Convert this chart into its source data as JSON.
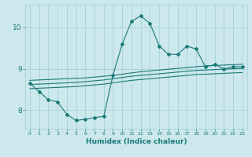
{
  "xlabel": "Humidex (Indice chaleur)",
  "ylabel": "",
  "bg_color": "#cce8ec",
  "grid_color": "#9ecdd4",
  "line_color": "#1a7a78",
  "xlim": [
    -0.5,
    23.5
  ],
  "ylim": [
    7.55,
    10.55
  ],
  "yticks": [
    8,
    9,
    10
  ],
  "xticks": [
    0,
    1,
    2,
    3,
    4,
    5,
    6,
    7,
    8,
    9,
    10,
    11,
    12,
    13,
    14,
    15,
    16,
    17,
    18,
    19,
    20,
    21,
    22,
    23
  ],
  "line1_x": [
    0,
    1,
    2,
    3,
    4,
    5,
    6,
    7,
    8,
    9,
    10,
    11,
    12,
    13,
    14,
    15,
    16,
    17,
    18,
    19,
    20,
    21,
    22,
    23
  ],
  "line1_y": [
    8.65,
    8.45,
    8.25,
    8.2,
    7.9,
    7.75,
    7.78,
    7.82,
    7.85,
    8.85,
    9.6,
    10.15,
    10.28,
    10.1,
    9.55,
    9.35,
    9.35,
    9.55,
    9.48,
    9.05,
    9.1,
    9.0,
    9.05,
    9.05
  ],
  "line2_x": [
    0,
    1,
    2,
    3,
    4,
    5,
    6,
    7,
    8,
    9,
    10,
    11,
    12,
    13,
    14,
    15,
    16,
    17,
    18,
    19,
    20,
    21,
    22,
    23
  ],
  "line2_y": [
    8.72,
    8.73,
    8.74,
    8.75,
    8.76,
    8.77,
    8.78,
    8.8,
    8.82,
    8.84,
    8.87,
    8.9,
    8.93,
    8.95,
    8.97,
    8.99,
    9.01,
    9.03,
    9.05,
    9.07,
    9.08,
    9.09,
    9.1,
    9.11
  ],
  "line3_x": [
    0,
    1,
    2,
    3,
    4,
    5,
    6,
    7,
    8,
    9,
    10,
    11,
    12,
    13,
    14,
    15,
    16,
    17,
    18,
    19,
    20,
    21,
    22,
    23
  ],
  "line3_y": [
    8.62,
    8.63,
    8.64,
    8.65,
    8.66,
    8.67,
    8.69,
    8.71,
    8.73,
    8.76,
    8.79,
    8.82,
    8.84,
    8.86,
    8.88,
    8.9,
    8.92,
    8.94,
    8.96,
    8.97,
    8.98,
    8.99,
    9.0,
    9.01
  ],
  "line4_x": [
    0,
    1,
    2,
    3,
    4,
    5,
    6,
    7,
    8,
    9,
    10,
    11,
    12,
    13,
    14,
    15,
    16,
    17,
    18,
    19,
    20,
    21,
    22,
    23
  ],
  "line4_y": [
    8.52,
    8.53,
    8.54,
    8.55,
    8.56,
    8.57,
    8.59,
    8.61,
    8.63,
    8.66,
    8.69,
    8.72,
    8.74,
    8.76,
    8.78,
    8.8,
    8.82,
    8.84,
    8.86,
    8.87,
    8.88,
    8.89,
    8.9,
    8.91
  ]
}
